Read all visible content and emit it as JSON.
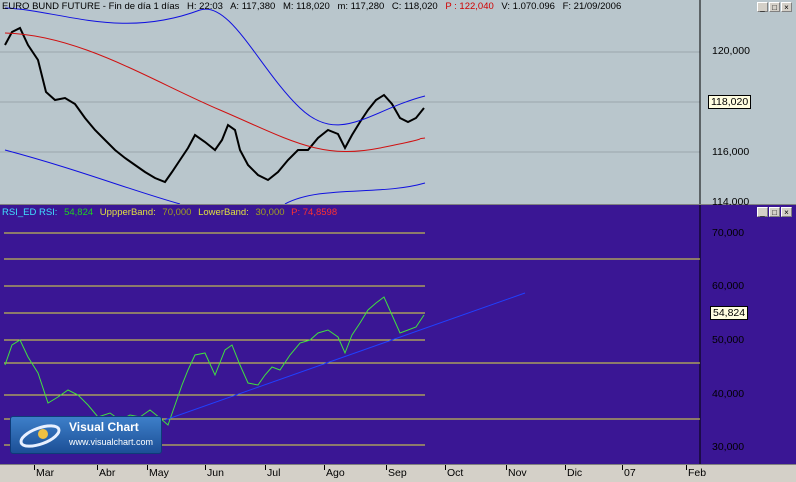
{
  "price_pane": {
    "info": {
      "symbol": "EURO BUND FUTURE - Fin de día 1 días",
      "h": "H: 22:03",
      "a": "A: 117,380",
      "m": "M: 118,020",
      "mn": "m: 117,280",
      "c": "C: 118,020",
      "p": "P : 122,040",
      "v": "V: 1.070.096",
      "f": "F: 21/09/2006"
    },
    "axis_labels": [
      "120,000",
      "118,020",
      "116,000",
      "114,000"
    ],
    "last_value": "118,020"
  },
  "rsi_pane": {
    "info": {
      "name": "RSI_ED  RSI:",
      "rsi_val": "54,824",
      "upper_lbl": "UppperBand:",
      "upper_val": "70,000",
      "lower_lbl": "LowerBand:",
      "lower_val": "30,000",
      "p": "P: 74,8598"
    },
    "axis_labels": [
      "70,000",
      "60,000",
      "50,000",
      "40,000",
      "30,000"
    ],
    "last_value": "54,824"
  },
  "months": [
    "Mar",
    "Abr",
    "May",
    "Jun",
    "Jul",
    "Ago",
    "Sep",
    "Oct",
    "Nov",
    "Dic",
    "07",
    "Feb"
  ],
  "logo": {
    "title": "Visual Chart",
    "url": "www.visualchart.com"
  },
  "window_buttons": [
    "_",
    "□",
    "×"
  ],
  "colors": {
    "price_bg": "#b9c6cc",
    "rsi_bg": "#3a1694",
    "ma": "#d01010",
    "bands": "#1010e0",
    "rsi": "#40e040",
    "levels": "#e0e040"
  }
}
